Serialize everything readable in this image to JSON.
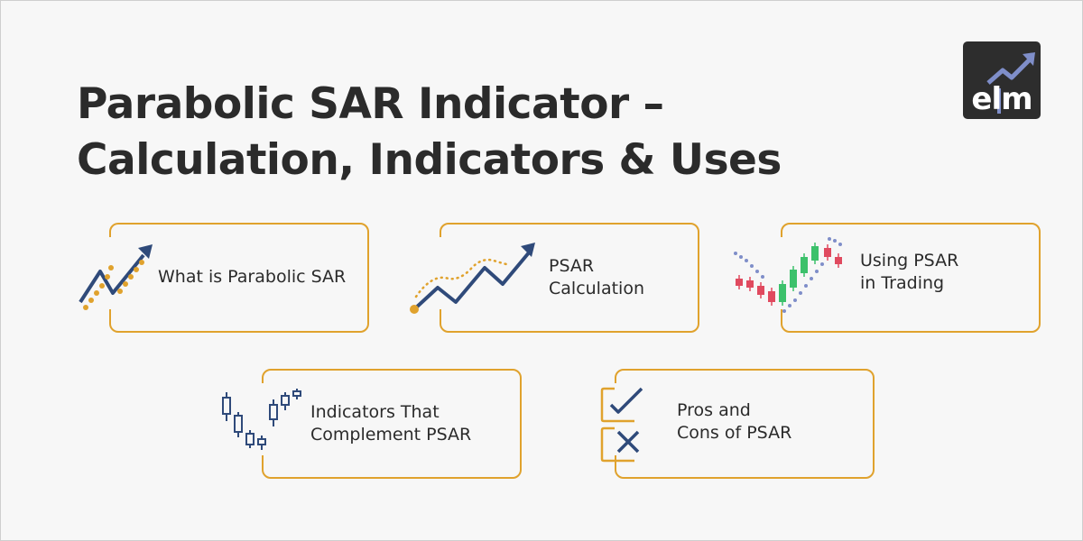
{
  "title": {
    "line1": "Parabolic SAR Indicator –",
    "line2": "Calculation, Indicators & Uses"
  },
  "logo": {
    "text": "elm",
    "icon": "trend-arrow-icon"
  },
  "colors": {
    "accent": "#e0a22d",
    "navy": "#2f4a7a",
    "dots": "#7f8ec9",
    "candle_red": "#e04a5f",
    "candle_green": "#3cc16b",
    "text": "#2b2b2b",
    "background": "#f7f7f7"
  },
  "cards": [
    {
      "lines": [
        "What is Parabolic SAR"
      ],
      "icon": "uptrend-arrow-dotted-icon"
    },
    {
      "lines": [
        "PSAR",
        "Calculation"
      ],
      "icon": "zigzag-arrow-icon"
    },
    {
      "lines": [
        "Using PSAR",
        "in Trading"
      ],
      "icon": "candlestick-psar-icon"
    },
    {
      "lines": [
        "Indicators That",
        "Complement PSAR"
      ],
      "icon": "candlestick-icon"
    },
    {
      "lines": [
        "Pros and",
        "Cons of PSAR"
      ],
      "icon": "check-cross-icon"
    }
  ]
}
